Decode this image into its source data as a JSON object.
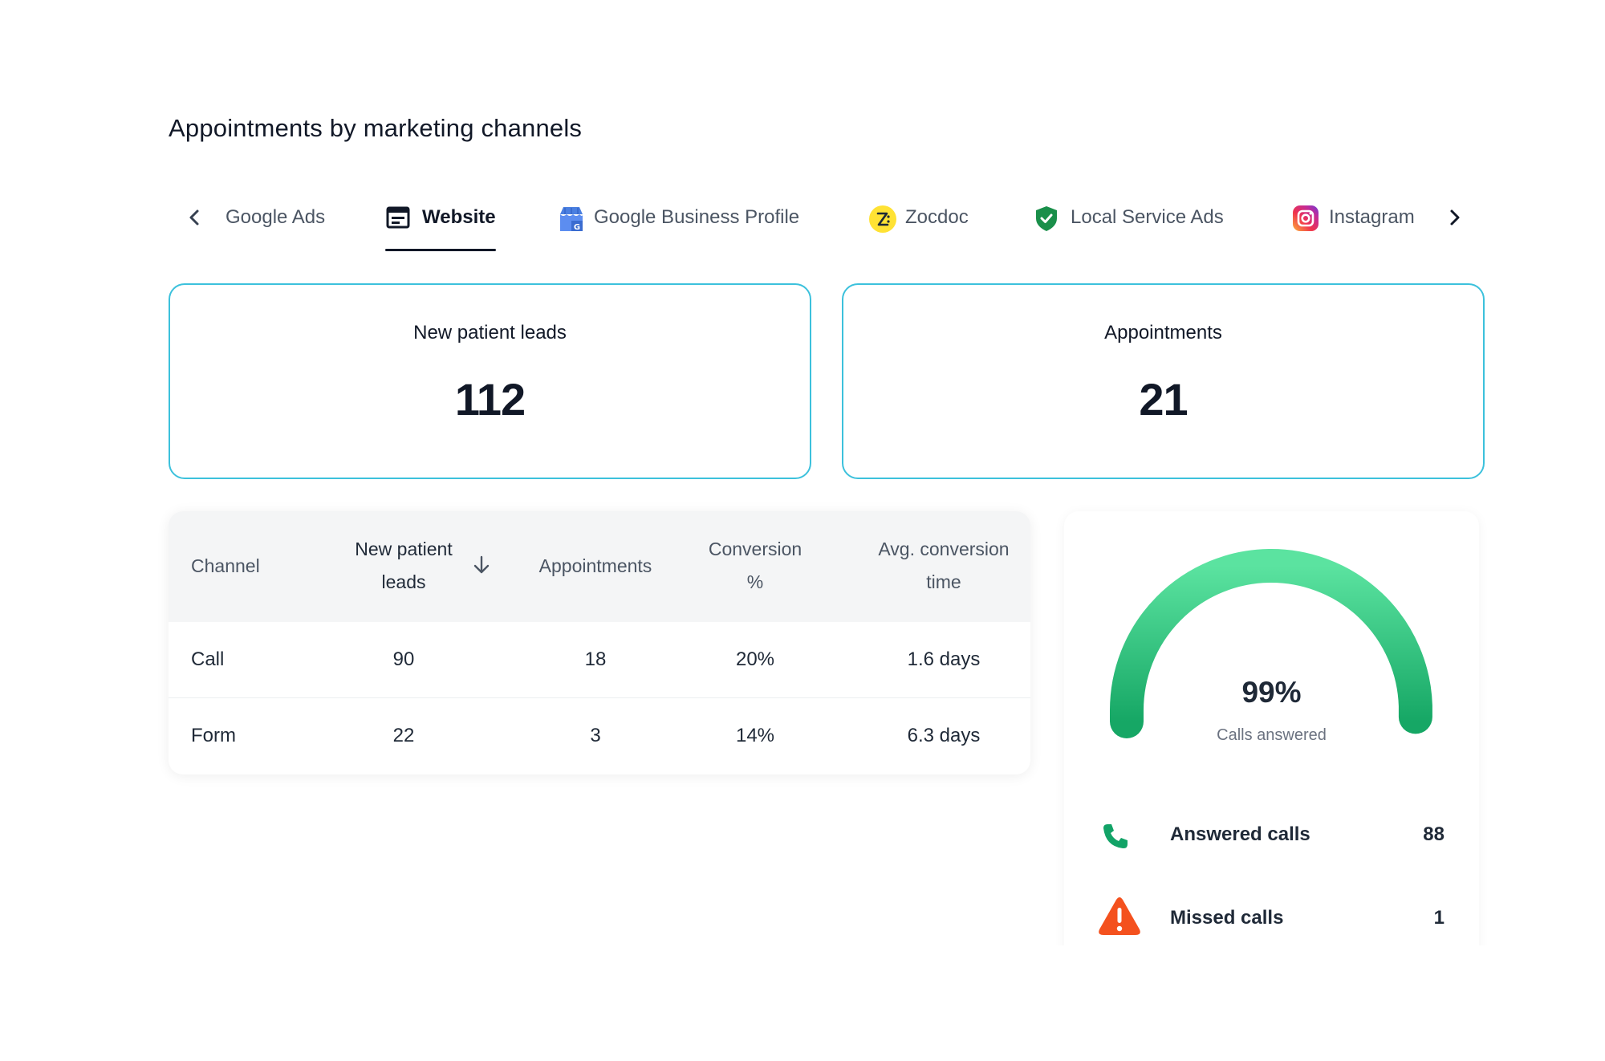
{
  "title": "Appointments by marketing channels",
  "tabs": [
    {
      "label": "Google Ads",
      "icon": "none"
    },
    {
      "label": "Website",
      "icon": "browser-window-icon"
    },
    {
      "label": "Google Business Profile",
      "icon": "google-business-icon"
    },
    {
      "label": "Zocdoc",
      "icon": "zocdoc-icon"
    },
    {
      "label": "Local Service Ads",
      "icon": "shield-check-icon"
    },
    {
      "label": "Instagram",
      "icon": "instagram-icon"
    }
  ],
  "active_tab": "Website",
  "kpis": {
    "leads": {
      "label": "New patient leads",
      "value": "112"
    },
    "appointments": {
      "label": "Appointments",
      "value": "21"
    }
  },
  "table": {
    "headers": {
      "channel": "Channel",
      "leads_1": "New patient",
      "leads_2": "leads",
      "appointments": "Appointments",
      "conversion_1": "Conversion",
      "conversion_2": "%",
      "avg_1": "Avg. conversion",
      "avg_2": "time"
    },
    "rows": [
      {
        "channel": "Call",
        "leads": "90",
        "appointments": "18",
        "conversion": "20%",
        "avg": "1.6 days"
      },
      {
        "channel": "Form",
        "leads": "22",
        "appointments": "3",
        "conversion": "14%",
        "avg": "6.3 days"
      }
    ]
  },
  "gauge": {
    "value_text": "99%",
    "fraction": 0.99,
    "label": "Calls answered",
    "colors": {
      "start": "#16a765",
      "end": "#5be3a0"
    }
  },
  "stats": [
    {
      "label": "Answered calls",
      "value": "88",
      "icon": "phone-icon",
      "color": "#12a367"
    },
    {
      "label": "Missed calls",
      "value": "1",
      "icon": "warning-icon",
      "color": "#f4511e"
    }
  ],
  "colors": {
    "card_border": "#3cc1dc",
    "text": "#111827"
  }
}
